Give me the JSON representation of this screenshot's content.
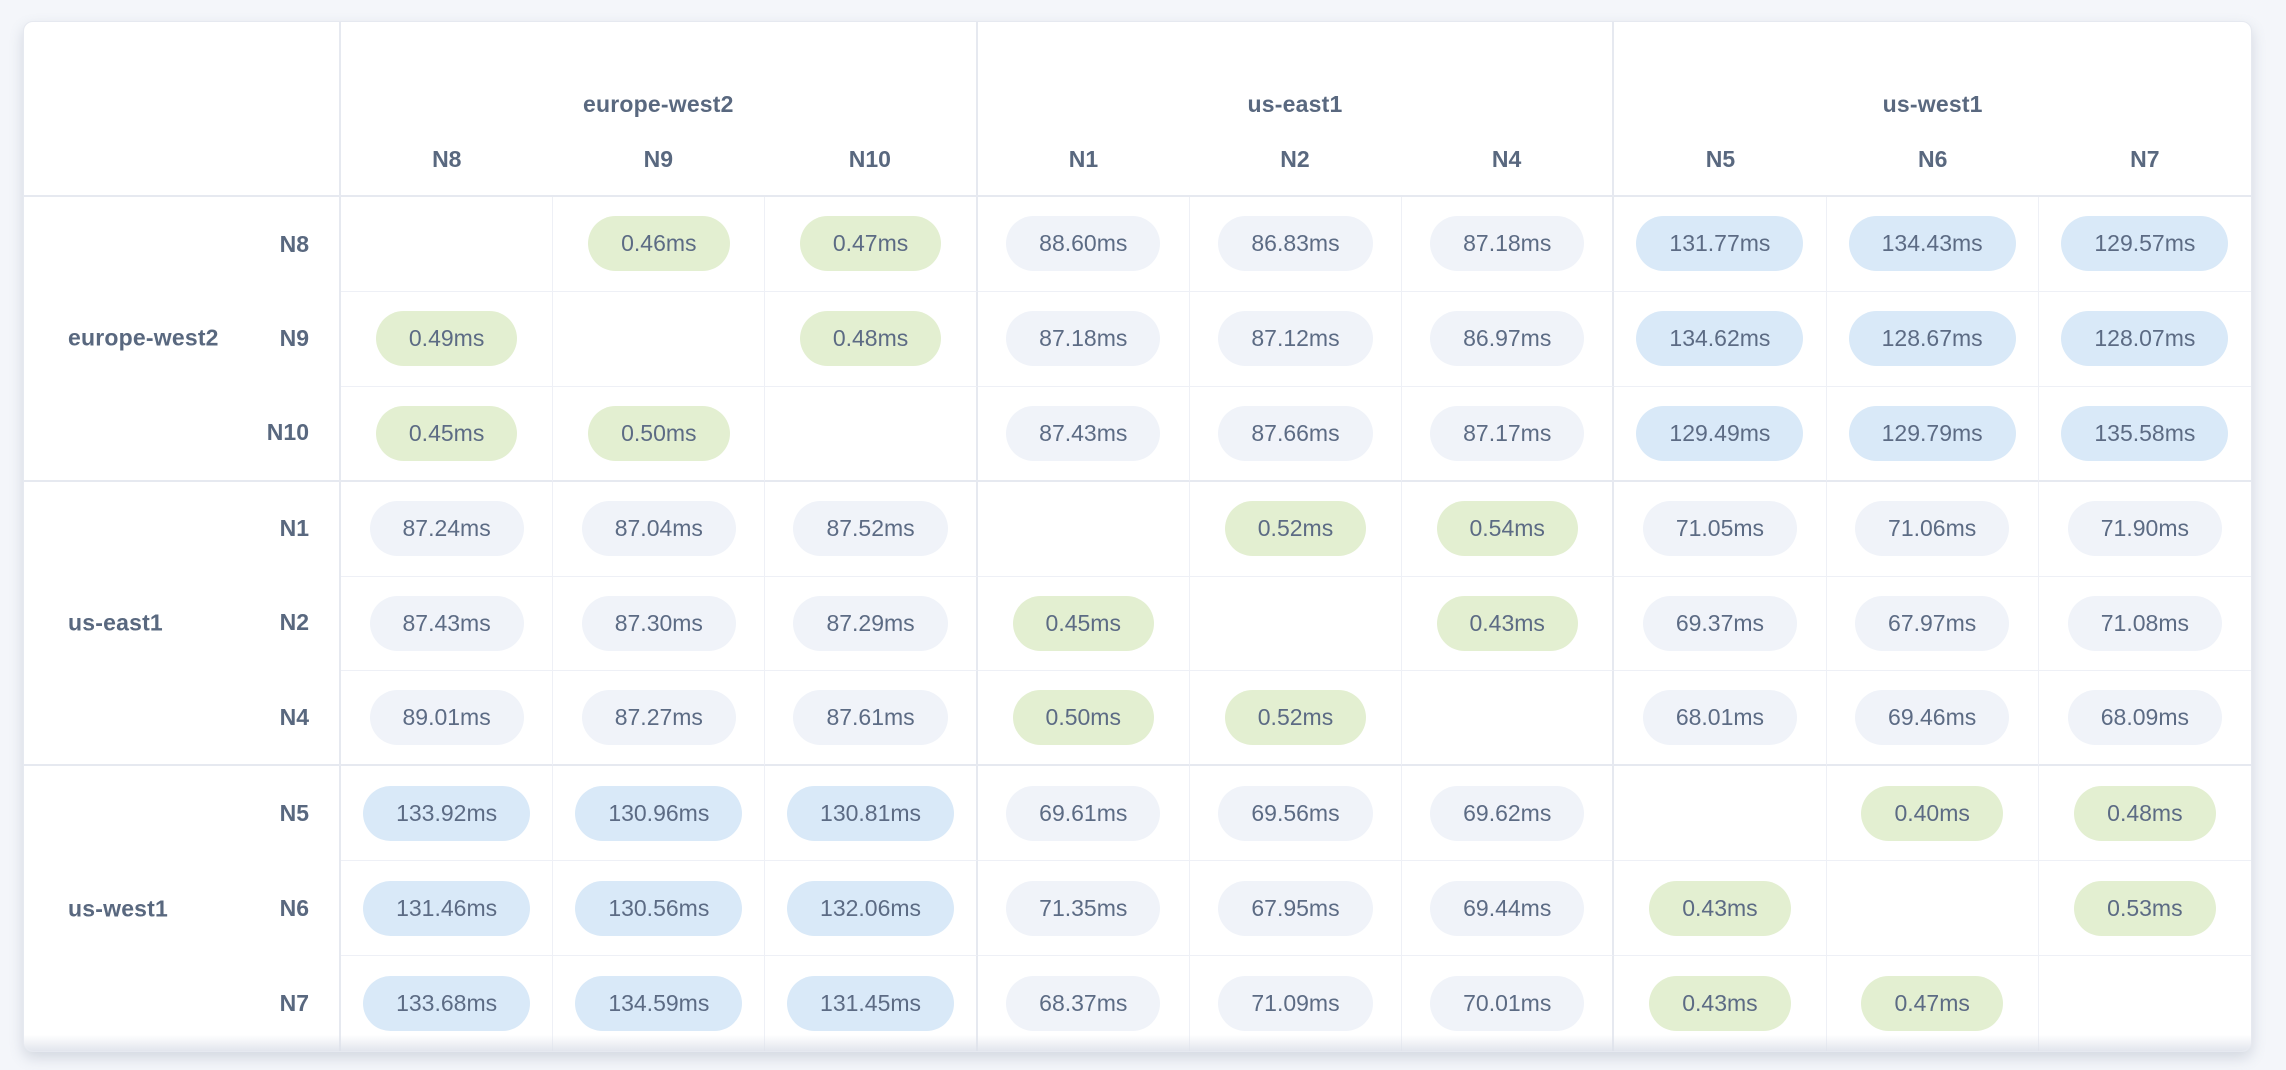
{
  "page": {
    "background": "#f4f6fa",
    "card_background": "#ffffff"
  },
  "chart_data": {
    "type": "heatmap",
    "title": "",
    "unit": "ms",
    "value_suffix": "ms",
    "groups": [
      {
        "region": "europe-west2",
        "nodes": [
          "N8",
          "N9",
          "N10"
        ]
      },
      {
        "region": "us-east1",
        "nodes": [
          "N1",
          "N2",
          "N4"
        ]
      },
      {
        "region": "us-west1",
        "nodes": [
          "N5",
          "N6",
          "N7"
        ]
      }
    ],
    "nodes_order": [
      "N8",
      "N9",
      "N10",
      "N1",
      "N2",
      "N4",
      "N5",
      "N6",
      "N7"
    ],
    "values": [
      [
        null,
        0.46,
        0.47,
        88.6,
        86.83,
        87.18,
        131.77,
        134.43,
        129.57
      ],
      [
        0.49,
        null,
        0.48,
        87.18,
        87.12,
        86.97,
        134.62,
        128.67,
        128.07
      ],
      [
        0.45,
        0.5,
        null,
        87.43,
        87.66,
        87.17,
        129.49,
        129.79,
        135.58
      ],
      [
        87.24,
        87.04,
        87.52,
        null,
        0.52,
        0.54,
        71.05,
        71.06,
        71.9
      ],
      [
        87.43,
        87.3,
        87.29,
        0.45,
        null,
        0.43,
        69.37,
        67.97,
        71.08
      ],
      [
        89.01,
        87.27,
        87.61,
        0.5,
        0.52,
        null,
        68.01,
        69.46,
        68.09
      ],
      [
        133.92,
        130.96,
        130.81,
        69.61,
        69.56,
        69.62,
        null,
        0.4,
        0.48
      ],
      [
        131.46,
        130.56,
        132.06,
        71.35,
        67.95,
        69.44,
        0.43,
        null,
        0.53
      ],
      [
        133.68,
        134.59,
        131.45,
        68.37,
        71.09,
        70.01,
        0.43,
        0.47,
        null
      ]
    ],
    "color_rules": [
      {
        "tier": "fast",
        "condition": "value < 1ms",
        "fill": "#e3efd1"
      },
      {
        "tier": "medium",
        "condition": "1ms <= value < 100ms",
        "fill": "#f0f3f9"
      },
      {
        "tier": "slow",
        "condition": "value >= 100ms",
        "fill": "#d9e9f8"
      }
    ],
    "legend_position": "none",
    "grid": true,
    "text_color": "#5c6b84",
    "label_color": "#59687f"
  }
}
